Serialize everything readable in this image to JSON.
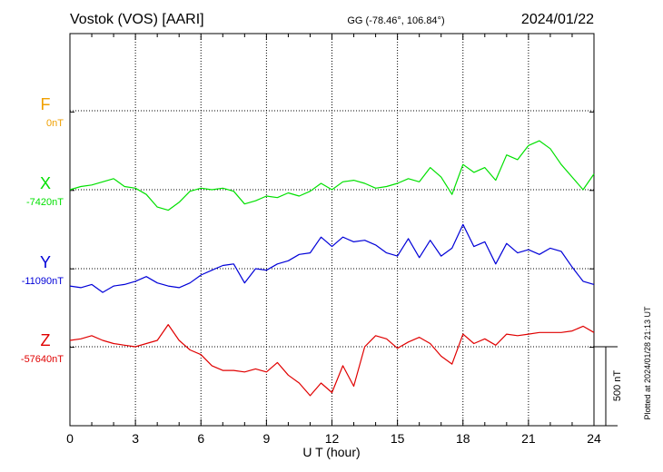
{
  "header": {
    "station": "Vostok (VOS)  [AARI]",
    "coords": "GG (-78.46°, 106.84°)",
    "date": "2024/01/22"
  },
  "side_note": "Plotted at 2024/01/28 21:13 UT",
  "scale_label": "500 nT",
  "chart_data": {
    "type": "line",
    "xlabel": "U T (hour)",
    "xlim": [
      0,
      24
    ],
    "xticks": [
      "0",
      "3",
      "6",
      "9",
      "12",
      "15",
      "18",
      "21",
      "24"
    ],
    "grid": true,
    "scale_bar_nT": 500,
    "series": [
      {
        "name": "F",
        "baseline_label": "0nT",
        "baseline_nT": 0,
        "color": "#f0a000",
        "x": [],
        "y": []
      },
      {
        "name": "X",
        "baseline_label": "-7420nT",
        "baseline_nT": -7420,
        "color": "#00e000",
        "x": [
          0,
          0.5,
          1,
          1.5,
          2,
          2.5,
          3,
          3.5,
          4,
          4.5,
          5,
          5.5,
          6,
          6.5,
          7,
          7.5,
          8,
          8.5,
          9,
          9.5,
          10,
          10.5,
          11,
          11.5,
          12,
          12.5,
          13,
          13.5,
          14,
          14.5,
          15,
          15.5,
          16,
          16.5,
          17,
          17.5,
          18,
          18.5,
          19,
          19.5,
          20,
          20.5,
          21,
          21.5,
          22,
          22.5,
          23,
          23.5,
          24
        ],
        "y": [
          -7420,
          -7400,
          -7390,
          -7370,
          -7350,
          -7400,
          -7410,
          -7450,
          -7530,
          -7550,
          -7500,
          -7430,
          -7410,
          -7420,
          -7410,
          -7430,
          -7510,
          -7490,
          -7460,
          -7470,
          -7440,
          -7460,
          -7430,
          -7380,
          -7420,
          -7370,
          -7360,
          -7380,
          -7410,
          -7400,
          -7380,
          -7350,
          -7370,
          -7280,
          -7340,
          -7450,
          -7260,
          -7310,
          -7280,
          -7360,
          -7200,
          -7230,
          -7140,
          -7110,
          -7160,
          -7260,
          -7340,
          -7420,
          -7320
        ]
      },
      {
        "name": "Y",
        "baseline_label": "-11090nT",
        "baseline_nT": -11090,
        "color": "#0000d8",
        "x": [
          0,
          0.5,
          1,
          1.5,
          2,
          2.5,
          3,
          3.5,
          4,
          4.5,
          5,
          5.5,
          6,
          6.5,
          7,
          7.5,
          8,
          8.5,
          9,
          9.5,
          10,
          10.5,
          11,
          11.5,
          12,
          12.5,
          13,
          13.5,
          14,
          14.5,
          15,
          15.5,
          16,
          16.5,
          17,
          17.5,
          18,
          18.5,
          19,
          19.5,
          20,
          20.5,
          21,
          21.5,
          22,
          22.5,
          23,
          23.5,
          24
        ],
        "y": [
          -11200,
          -11210,
          -11190,
          -11240,
          -11200,
          -11190,
          -11170,
          -11140,
          -11180,
          -11200,
          -11210,
          -11180,
          -11130,
          -11100,
          -11070,
          -11060,
          -11180,
          -11090,
          -11100,
          -11060,
          -11040,
          -11000,
          -10990,
          -10890,
          -10950,
          -10890,
          -10920,
          -10910,
          -10940,
          -10990,
          -11010,
          -10900,
          -11020,
          -10910,
          -11010,
          -10960,
          -10810,
          -10950,
          -10920,
          -11060,
          -10930,
          -10990,
          -10970,
          -11000,
          -10960,
          -10980,
          -11080,
          -11170,
          -11190
        ]
      },
      {
        "name": "Z",
        "baseline_label": "-57640nT",
        "baseline_nT": -57640,
        "color": "#e00000",
        "x": [
          0,
          0.5,
          1,
          1.5,
          2,
          2.5,
          3,
          3.5,
          4,
          4.5,
          5,
          5.5,
          6,
          6.5,
          7,
          7.5,
          8,
          8.5,
          9,
          9.5,
          10,
          10.5,
          11,
          11.5,
          12,
          12.5,
          13,
          13.5,
          14,
          14.5,
          15,
          15.5,
          16,
          16.5,
          17,
          17.5,
          18,
          18.5,
          19,
          19.5,
          20,
          20.5,
          21,
          21.5,
          22,
          22.5,
          23,
          23.5,
          24
        ],
        "y": [
          -57600,
          -57590,
          -57570,
          -57600,
          -57620,
          -57630,
          -57640,
          -57620,
          -57600,
          -57500,
          -57600,
          -57660,
          -57690,
          -57760,
          -57790,
          -57790,
          -57800,
          -57780,
          -57800,
          -57740,
          -57820,
          -57870,
          -57950,
          -57870,
          -57930,
          -57760,
          -57890,
          -57640,
          -57570,
          -57590,
          -57650,
          -57610,
          -57580,
          -57620,
          -57700,
          -57750,
          -57560,
          -57620,
          -57590,
          -57630,
          -57560,
          -57570,
          -57560,
          -57550,
          -57550,
          -57550,
          -57540,
          -57510,
          -57550
        ]
      }
    ]
  }
}
